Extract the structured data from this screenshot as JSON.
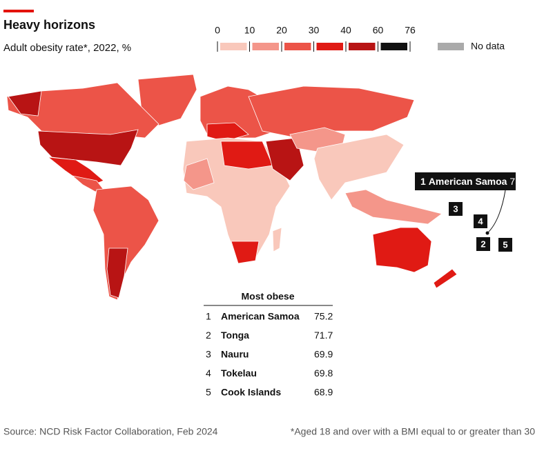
{
  "header": {
    "title": "Heavy horizons",
    "subtitle": "Adult obesity rate*, 2022, %"
  },
  "legend": {
    "ticks": [
      0,
      10,
      20,
      30,
      40,
      60,
      76
    ],
    "colors": [
      "#f9c8bb",
      "#f4968a",
      "#ec5448",
      "#e01a14",
      "#b81414",
      "#111111"
    ],
    "no_data_label": "No data",
    "no_data_color": "#aaaaaa"
  },
  "table": {
    "title": "Most obese",
    "rows": [
      [
        1,
        "American Samoa",
        75.2
      ],
      [
        2,
        "Tonga",
        71.7
      ],
      [
        3,
        "Nauru",
        69.9
      ],
      [
        4,
        "Tokelau",
        69.8
      ],
      [
        5,
        "Cook Islands",
        68.9
      ]
    ]
  },
  "footer": {
    "source": "Source: NCD Risk Factor Collaboration, Feb 2024",
    "note": "*Aged 18 and over with a BMI equal to or greater than 30"
  }
}
